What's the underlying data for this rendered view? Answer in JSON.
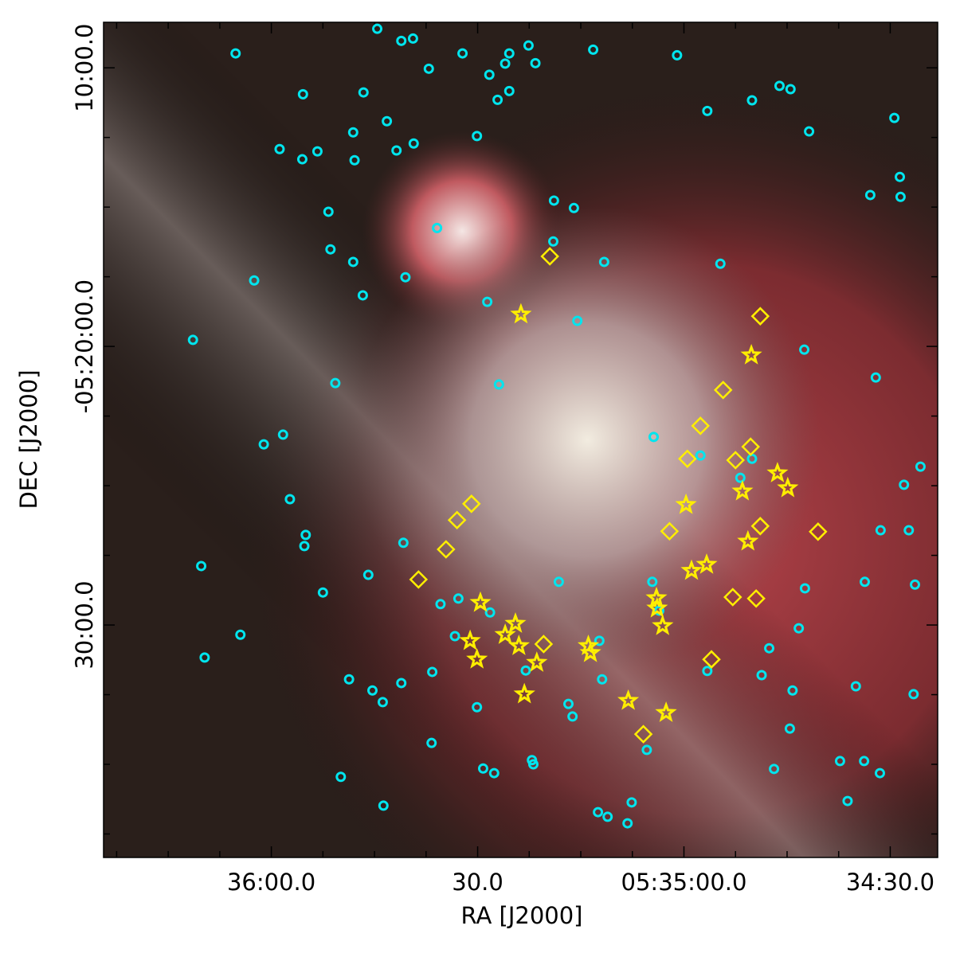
{
  "chart_data": {
    "type": "scatter",
    "xlabel": "RA [J2000]",
    "ylabel": "DEC [J2000]",
    "xlim": [
      2184.4,
      2063.1
    ],
    "ylim": [
      2300.6,
      502
    ],
    "xticks": [
      {
        "value": 2160,
        "label": "36:00.0"
      },
      {
        "value": 2130,
        "label": "30.0"
      },
      {
        "value": 2100,
        "label": "05:35:00.0"
      },
      {
        "value": 2070,
        "label": "34:30.0"
      }
    ],
    "xminorticks": [
      2182.5,
      2175,
      2167.5,
      2152.5,
      2145,
      2137.5,
      2122.5,
      2115,
      2107.5,
      2092.5,
      2085,
      2077.5
    ],
    "yticks": [
      {
        "value": 600,
        "label": "10:00.0"
      },
      {
        "value": 1200,
        "label": "-05:20:00.0"
      },
      {
        "value": 1800,
        "label": "30:00.0"
      }
    ],
    "yminorticks": [
      750,
      900,
      1050,
      1350,
      1500,
      1650,
      1950,
      2100,
      2250
    ],
    "series": [
      {
        "marker": "circle",
        "color": "#00e5ee",
        "x": [
          2144.6,
          2165.2,
          2141.1,
          2139.4,
          2132.2,
          2125.4,
          2122.6,
          2121.6,
          2126.0,
          2137.1,
          2128.3,
          2125.4,
          2127.1,
          2113.2,
          2101.0,
          2155.4,
          2146.6,
          2086.1,
          2084.5,
          2090.1,
          2096.6,
          2069.4,
          2143.2,
          2148.1,
          2130.1,
          2081.8,
          2139.3,
          2158.8,
          2153.3,
          2141.8,
          2155.5,
          2147.9,
          2068.6,
          2072.9,
          2068.5,
          2118.9,
          2116.0,
          2151.7,
          2135.9,
          2119.0,
          2151.4,
          2148.1,
          2111.6,
          2094.7,
          2162.5,
          2140.5,
          2146.7,
          2128.6,
          2115.5,
          2171.4,
          2082.5,
          2150.7,
          2126.9,
          2072.1,
          2104.4,
          2158.3,
          2161.1,
          2097.6,
          2090.1,
          2091.8,
          2065.6,
          2068.0,
          2157.3,
          2155.0,
          2155.2,
          2140.8,
          2071.4,
          2067.3,
          2170.2,
          2145.9,
          2118.2,
          2104.6,
          2073.7,
          2066.4,
          2082.4,
          2152.5,
          2132.8,
          2135.4,
          2128.2,
          2103.6,
          2083.3,
          2164.5,
          2133.3,
          2112.3,
          2087.6,
          2169.7,
          2136.6,
          2123.0,
          2096.6,
          2088.7,
          2148.7,
          2141.1,
          2111.9,
          2145.3,
          2075.0,
          2084.2,
          2066.6,
          2143.8,
          2116.8,
          2130.1,
          2116.2,
          2084.6,
          2136.7,
          2105.4,
          2122.1,
          2121.9,
          2077.3,
          2073.8,
          2129.2,
          2127.6,
          2086.9,
          2071.5,
          2149.9,
          2076.2,
          2143.7,
          2107.6,
          2112.5,
          2111.1,
          2108.2
        ],
        "y": [
          516,
          569,
          542,
          537,
          569,
          569,
          552,
          590,
          591,
          602,
          615,
          650,
          669,
          561,
          573,
          657,
          653,
          639,
          646,
          670,
          693,
          708,
          715,
          739,
          747,
          737,
          763,
          775,
          780,
          778,
          797,
          799,
          835,
          874,
          878,
          886,
          902,
          910,
          945,
          974,
          991,
          1018,
          1018,
          1022,
          1058,
          1051,
          1090,
          1104,
          1145,
          1186,
          1207,
          1279,
          1282,
          1267,
          1395,
          1390,
          1411,
          1435,
          1442,
          1483,
          1459,
          1498,
          1529,
          1606,
          1630,
          1623,
          1596,
          1596,
          1673,
          1692,
          1707,
          1707,
          1707,
          1713,
          1721,
          1730,
          1743,
          1755,
          1773,
          1769,
          1807,
          1821,
          1824,
          1834,
          1850,
          1870,
          1901,
          1898,
          1899,
          1908,
          1917,
          1925,
          1917,
          1941,
          1932,
          1941,
          1949,
          1966,
          1970,
          1977,
          1997,
          2023,
          2054,
          2069,
          2091,
          2100,
          2093,
          2093,
          2109,
          2119,
          2110,
          2119,
          2127,
          2179,
          2189,
          2182,
          2203,
          2213,
          2227
        ]
      },
      {
        "marker": "diamond",
        "color": "#ffee00",
        "x": [
          2119.5,
          2088.9,
          2094.3,
          2097.6,
          2090.3,
          2099.5,
          2092.5,
          2130.9,
          2133.0,
          2088.9,
          2102.1,
          2080.5,
          2134.6,
          2138.6,
          2092.9,
          2089.5,
          2120.4,
          2096.0,
          2105.9
        ],
        "y": [
          1006,
          1135,
          1294,
          1371,
          1416,
          1442,
          1445,
          1539,
          1574,
          1587,
          1598,
          1599,
          1637,
          1702,
          1740,
          1743,
          1841,
          1874,
          2035
        ]
      },
      {
        "marker": "star",
        "color": "#ffee00",
        "x": [
          2123.7,
          2090.2,
          2099.7,
          2091.5,
          2086.4,
          2084.9,
          2090.7,
          2098.9,
          2096.7,
          2129.6,
          2104.0,
          2103.9,
          2103.1,
          2124.5,
          2126.0,
          2124.0,
          2131.1,
          2130.1,
          2121.4,
          2113.9,
          2113.6,
          2123.2,
          2108.1,
          2102.6
        ],
        "y": [
          1131,
          1219,
          1541,
          1512,
          1473,
          1505,
          1620,
          1683,
          1670,
          1752,
          1742,
          1764,
          1802,
          1797,
          1821,
          1845,
          1834,
          1874,
          1881,
          1845,
          1860,
          1949,
          1963,
          1989
        ]
      }
    ]
  }
}
